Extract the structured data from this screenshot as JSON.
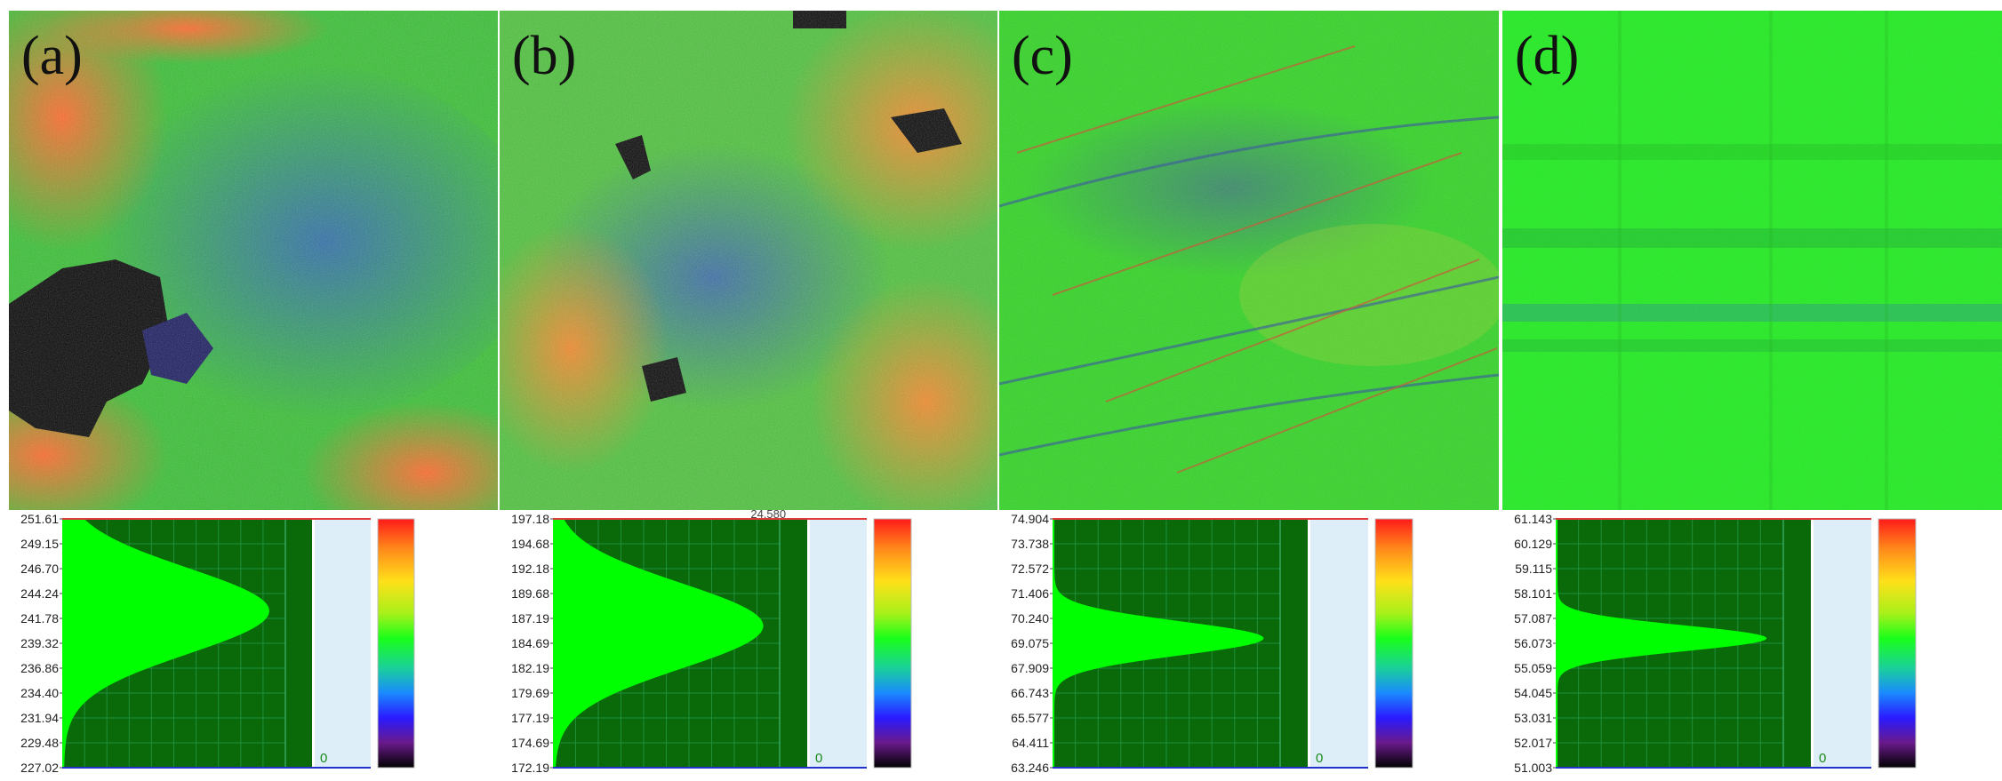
{
  "panels": [
    {
      "label": "(a)",
      "hist_ticks": [
        "251.61",
        "249.15",
        "246.70",
        "244.24",
        "241.78",
        "239.32",
        "236.86",
        "234.40",
        "231.94",
        "229.48",
        "227.02"
      ],
      "zero_label": "0",
      "top_label": "",
      "peak_fraction": 0.37,
      "peak_width": 0.43
    },
    {
      "label": "(b)",
      "hist_ticks": [
        "197.18",
        "194.68",
        "192.18",
        "189.68",
        "187.19",
        "184.69",
        "182.19",
        "179.69",
        "177.19",
        "174.69",
        "172.19"
      ],
      "zero_label": "0",
      "top_label": "24.580",
      "peak_fraction": 0.43,
      "peak_width": 0.43
    },
    {
      "label": "(c)",
      "hist_ticks": [
        "74.904",
        "73.738",
        "72.572",
        "71.406",
        "70.240",
        "69.075",
        "67.909",
        "66.743",
        "65.577",
        "64.411",
        "63.246"
      ],
      "zero_label": "0",
      "top_label": "",
      "peak_fraction": 0.48,
      "peak_width": 0.17
    },
    {
      "label": "(d)",
      "hist_ticks": [
        "61.143",
        "60.129",
        "59.115",
        "58.101",
        "57.087",
        "56.073",
        "55.059",
        "54.045",
        "53.031",
        "52.017",
        "51.003"
      ],
      "zero_label": "0",
      "top_label": "",
      "peak_fraction": 0.48,
      "peak_width": 0.13
    }
  ],
  "colors": {
    "hist_bg": "#0a6a0a",
    "hist_fill": "#00ff00",
    "grid": "#1f8f3a",
    "legend_bg": "#ddeef8",
    "top_line": "#e23a3a",
    "bottom_line": "#2233cc"
  }
}
